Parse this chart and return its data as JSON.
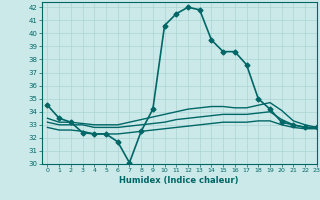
{
  "xlabel": "Humidex (Indice chaleur)",
  "background_color": "#cce9e9",
  "grid_color": "#aad4d4",
  "line_color": "#006666",
  "xlim": [
    -0.5,
    23
  ],
  "ylim": [
    30,
    42.4
  ],
  "yticks": [
    30,
    31,
    32,
    33,
    34,
    35,
    36,
    37,
    38,
    39,
    40,
    41,
    42
  ],
  "xticks": [
    0,
    1,
    2,
    3,
    4,
    5,
    6,
    7,
    8,
    9,
    10,
    11,
    12,
    13,
    14,
    15,
    16,
    17,
    18,
    19,
    20,
    21,
    22,
    23
  ],
  "series": [
    {
      "x": [
        0,
        1,
        2,
        3,
        4,
        5,
        6,
        7,
        8,
        9,
        10,
        11,
        12,
        13,
        14,
        15,
        16,
        17,
        18,
        19,
        20,
        21,
        22,
        23
      ],
      "y": [
        34.5,
        33.5,
        33.2,
        32.4,
        32.3,
        32.3,
        31.7,
        30.1,
        32.5,
        34.2,
        40.6,
        41.5,
        42.0,
        41.8,
        39.5,
        38.6,
        38.6,
        37.6,
        35.0,
        34.2,
        33.2,
        33.0,
        32.8,
        32.8
      ],
      "marker": "D",
      "markersize": 2.5,
      "linewidth": 1.2
    },
    {
      "x": [
        0,
        1,
        2,
        3,
        4,
        5,
        6,
        7,
        8,
        9,
        10,
        11,
        12,
        13,
        14,
        15,
        16,
        17,
        18,
        19,
        20,
        21,
        22,
        23
      ],
      "y": [
        33.5,
        33.2,
        33.2,
        33.1,
        33.0,
        33.0,
        33.0,
        33.2,
        33.4,
        33.6,
        33.8,
        34.0,
        34.2,
        34.3,
        34.4,
        34.4,
        34.3,
        34.3,
        34.5,
        34.7,
        34.1,
        33.3,
        33.0,
        32.8
      ],
      "marker": null,
      "markersize": 0,
      "linewidth": 1.0
    },
    {
      "x": [
        0,
        1,
        2,
        3,
        4,
        5,
        6,
        7,
        8,
        9,
        10,
        11,
        12,
        13,
        14,
        15,
        16,
        17,
        18,
        19,
        20,
        21,
        22,
        23
      ],
      "y": [
        33.2,
        33.0,
        33.0,
        33.0,
        32.8,
        32.8,
        32.8,
        32.9,
        33.0,
        33.1,
        33.2,
        33.4,
        33.5,
        33.6,
        33.7,
        33.8,
        33.8,
        33.8,
        33.9,
        34.0,
        33.4,
        33.0,
        32.8,
        32.8
      ],
      "marker": null,
      "markersize": 0,
      "linewidth": 1.0
    },
    {
      "x": [
        0,
        1,
        2,
        3,
        4,
        5,
        6,
        7,
        8,
        9,
        10,
        11,
        12,
        13,
        14,
        15,
        16,
        17,
        18,
        19,
        20,
        21,
        22,
        23
      ],
      "y": [
        32.8,
        32.6,
        32.6,
        32.5,
        32.3,
        32.3,
        32.3,
        32.4,
        32.5,
        32.6,
        32.7,
        32.8,
        32.9,
        33.0,
        33.1,
        33.2,
        33.2,
        33.2,
        33.3,
        33.3,
        33.0,
        32.8,
        32.7,
        32.7
      ],
      "marker": null,
      "markersize": 0,
      "linewidth": 1.0
    }
  ]
}
